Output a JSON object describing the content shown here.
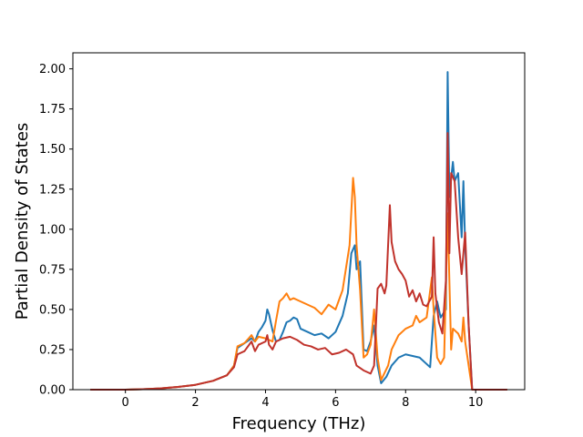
{
  "chart_data": {
    "type": "line",
    "title": "",
    "xlabel": "Frequency (THz)",
    "ylabel": "Partial Density of States",
    "xlim": [
      -1.5,
      11.4
    ],
    "ylim": [
      0.0,
      2.1
    ],
    "xticks": [
      0,
      2,
      4,
      6,
      8,
      10
    ],
    "xtick_labels": [
      "0",
      "2",
      "4",
      "6",
      "8",
      "10"
    ],
    "yticks": [
      0.0,
      0.25,
      0.5,
      0.75,
      1.0,
      1.25,
      1.5,
      1.75,
      2.0
    ],
    "ytick_labels": [
      "0.00",
      "0.25",
      "0.50",
      "0.75",
      "1.00",
      "1.25",
      "1.50",
      "1.75",
      "2.00"
    ],
    "grid": false,
    "legend": "none",
    "series": [
      {
        "color": "#1f77b4",
        "points": [
          [
            -1.0,
            0.0
          ],
          [
            0.0,
            0.0
          ],
          [
            0.5,
            0.003
          ],
          [
            1.0,
            0.008
          ],
          [
            1.5,
            0.017
          ],
          [
            2.0,
            0.03
          ],
          [
            2.5,
            0.055
          ],
          [
            2.9,
            0.09
          ],
          [
            3.1,
            0.15
          ],
          [
            3.2,
            0.26
          ],
          [
            3.4,
            0.29
          ],
          [
            3.6,
            0.32
          ],
          [
            3.7,
            0.3
          ],
          [
            3.8,
            0.36
          ],
          [
            3.9,
            0.39
          ],
          [
            4.0,
            0.43
          ],
          [
            4.05,
            0.5
          ],
          [
            4.1,
            0.47
          ],
          [
            4.2,
            0.37
          ],
          [
            4.3,
            0.3
          ],
          [
            4.4,
            0.31
          ],
          [
            4.5,
            0.36
          ],
          [
            4.6,
            0.42
          ],
          [
            4.7,
            0.43
          ],
          [
            4.8,
            0.45
          ],
          [
            4.9,
            0.44
          ],
          [
            5.0,
            0.38
          ],
          [
            5.2,
            0.36
          ],
          [
            5.4,
            0.34
          ],
          [
            5.6,
            0.35
          ],
          [
            5.8,
            0.32
          ],
          [
            6.0,
            0.36
          ],
          [
            6.2,
            0.46
          ],
          [
            6.35,
            0.6
          ],
          [
            6.45,
            0.85
          ],
          [
            6.55,
            0.9
          ],
          [
            6.6,
            0.75
          ],
          [
            6.7,
            0.8
          ],
          [
            6.8,
            0.25
          ],
          [
            6.9,
            0.24
          ],
          [
            7.0,
            0.3
          ],
          [
            7.1,
            0.4
          ],
          [
            7.2,
            0.15
          ],
          [
            7.3,
            0.04
          ],
          [
            7.45,
            0.08
          ],
          [
            7.6,
            0.15
          ],
          [
            7.8,
            0.2
          ],
          [
            8.0,
            0.22
          ],
          [
            8.2,
            0.21
          ],
          [
            8.4,
            0.2
          ],
          [
            8.6,
            0.16
          ],
          [
            8.7,
            0.14
          ],
          [
            8.8,
            0.46
          ],
          [
            8.9,
            0.55
          ],
          [
            9.0,
            0.45
          ],
          [
            9.15,
            0.5
          ],
          [
            9.2,
            1.98
          ],
          [
            9.25,
            1.2
          ],
          [
            9.3,
            1.32
          ],
          [
            9.35,
            1.42
          ],
          [
            9.4,
            1.3
          ],
          [
            9.5,
            1.35
          ],
          [
            9.6,
            0.95
          ],
          [
            9.65,
            1.3
          ],
          [
            9.7,
            0.9
          ],
          [
            9.8,
            0.4
          ],
          [
            9.9,
            0.0
          ],
          [
            10.9,
            0.0
          ]
        ]
      },
      {
        "color": "#ff7f0e",
        "points": [
          [
            -1.0,
            0.0
          ],
          [
            0.0,
            0.0
          ],
          [
            0.5,
            0.003
          ],
          [
            1.0,
            0.008
          ],
          [
            1.5,
            0.017
          ],
          [
            2.0,
            0.03
          ],
          [
            2.5,
            0.055
          ],
          [
            2.9,
            0.09
          ],
          [
            3.1,
            0.15
          ],
          [
            3.2,
            0.27
          ],
          [
            3.4,
            0.29
          ],
          [
            3.6,
            0.34
          ],
          [
            3.7,
            0.3
          ],
          [
            3.8,
            0.33
          ],
          [
            4.0,
            0.32
          ],
          [
            4.2,
            0.3
          ],
          [
            4.3,
            0.43
          ],
          [
            4.4,
            0.55
          ],
          [
            4.5,
            0.57
          ],
          [
            4.6,
            0.6
          ],
          [
            4.7,
            0.56
          ],
          [
            4.8,
            0.57
          ],
          [
            5.0,
            0.55
          ],
          [
            5.2,
            0.53
          ],
          [
            5.4,
            0.51
          ],
          [
            5.6,
            0.47
          ],
          [
            5.8,
            0.53
          ],
          [
            6.0,
            0.5
          ],
          [
            6.2,
            0.62
          ],
          [
            6.4,
            0.9
          ],
          [
            6.5,
            1.32
          ],
          [
            6.55,
            1.2
          ],
          [
            6.6,
            0.9
          ],
          [
            6.7,
            0.62
          ],
          [
            6.8,
            0.2
          ],
          [
            6.9,
            0.22
          ],
          [
            7.0,
            0.28
          ],
          [
            7.1,
            0.5
          ],
          [
            7.2,
            0.2
          ],
          [
            7.3,
            0.06
          ],
          [
            7.5,
            0.15
          ],
          [
            7.6,
            0.25
          ],
          [
            7.8,
            0.34
          ],
          [
            8.0,
            0.38
          ],
          [
            8.2,
            0.4
          ],
          [
            8.3,
            0.46
          ],
          [
            8.4,
            0.42
          ],
          [
            8.6,
            0.45
          ],
          [
            8.75,
            0.7
          ],
          [
            8.8,
            0.5
          ],
          [
            8.9,
            0.2
          ],
          [
            9.0,
            0.16
          ],
          [
            9.1,
            0.2
          ],
          [
            9.2,
            1.1
          ],
          [
            9.3,
            0.25
          ],
          [
            9.35,
            0.38
          ],
          [
            9.5,
            0.35
          ],
          [
            9.6,
            0.3
          ],
          [
            9.65,
            0.45
          ],
          [
            9.7,
            0.3
          ],
          [
            9.9,
            0.0
          ],
          [
            10.9,
            0.0
          ]
        ]
      },
      {
        "color": "#c0322b",
        "points": [
          [
            -1.0,
            0.0
          ],
          [
            0.0,
            0.0
          ],
          [
            0.5,
            0.003
          ],
          [
            1.0,
            0.008
          ],
          [
            1.5,
            0.017
          ],
          [
            2.0,
            0.03
          ],
          [
            2.5,
            0.055
          ],
          [
            2.9,
            0.09
          ],
          [
            3.1,
            0.14
          ],
          [
            3.2,
            0.22
          ],
          [
            3.4,
            0.24
          ],
          [
            3.6,
            0.3
          ],
          [
            3.7,
            0.24
          ],
          [
            3.8,
            0.28
          ],
          [
            4.0,
            0.3
          ],
          [
            4.05,
            0.34
          ],
          [
            4.1,
            0.28
          ],
          [
            4.2,
            0.25
          ],
          [
            4.3,
            0.3
          ],
          [
            4.5,
            0.32
          ],
          [
            4.7,
            0.33
          ],
          [
            4.9,
            0.31
          ],
          [
            5.1,
            0.28
          ],
          [
            5.3,
            0.27
          ],
          [
            5.5,
            0.25
          ],
          [
            5.7,
            0.26
          ],
          [
            5.9,
            0.22
          ],
          [
            6.1,
            0.23
          ],
          [
            6.3,
            0.25
          ],
          [
            6.5,
            0.22
          ],
          [
            6.6,
            0.15
          ],
          [
            6.8,
            0.12
          ],
          [
            7.0,
            0.1
          ],
          [
            7.1,
            0.15
          ],
          [
            7.2,
            0.63
          ],
          [
            7.3,
            0.66
          ],
          [
            7.4,
            0.6
          ],
          [
            7.45,
            0.65
          ],
          [
            7.55,
            1.15
          ],
          [
            7.6,
            0.92
          ],
          [
            7.7,
            0.8
          ],
          [
            7.8,
            0.75
          ],
          [
            7.9,
            0.72
          ],
          [
            8.0,
            0.68
          ],
          [
            8.1,
            0.58
          ],
          [
            8.2,
            0.62
          ],
          [
            8.3,
            0.55
          ],
          [
            8.4,
            0.6
          ],
          [
            8.5,
            0.53
          ],
          [
            8.6,
            0.52
          ],
          [
            8.75,
            0.58
          ],
          [
            8.8,
            0.95
          ],
          [
            8.85,
            0.6
          ],
          [
            8.95,
            0.42
          ],
          [
            9.05,
            0.35
          ],
          [
            9.15,
            0.68
          ],
          [
            9.2,
            1.6
          ],
          [
            9.25,
            0.85
          ],
          [
            9.3,
            1.35
          ],
          [
            9.4,
            1.3
          ],
          [
            9.5,
            0.95
          ],
          [
            9.6,
            0.72
          ],
          [
            9.7,
            0.98
          ],
          [
            9.8,
            0.4
          ],
          [
            9.9,
            0.0
          ],
          [
            10.9,
            0.0
          ]
        ]
      }
    ]
  }
}
